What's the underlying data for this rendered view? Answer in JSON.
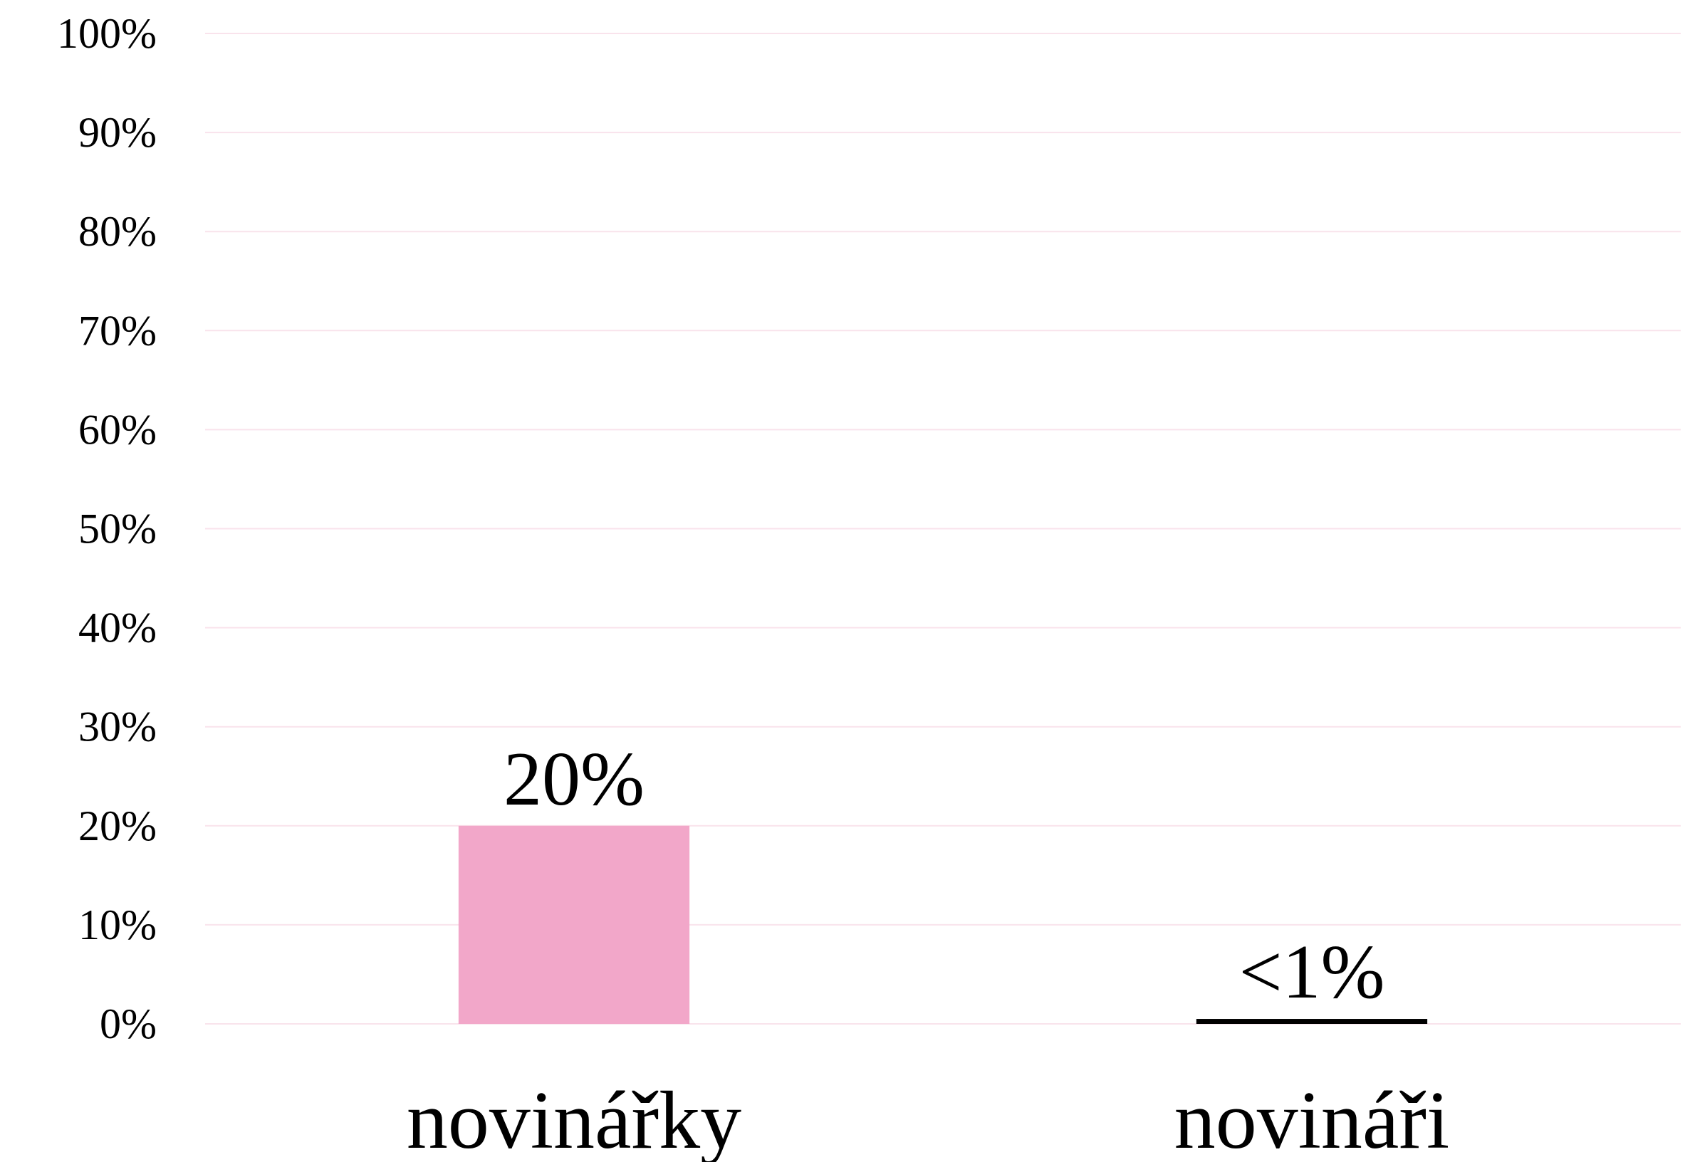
{
  "chart_data": {
    "type": "bar",
    "categories": [
      "novinářky",
      "novináři"
    ],
    "values": [
      20,
      0.5
    ],
    "value_labels": [
      "20%",
      "<1%"
    ],
    "colors": [
      "#f2a7c9",
      "#000000"
    ],
    "ylim": [
      0,
      100
    ],
    "yticks": [
      {
        "value": 0,
        "label": "0%"
      },
      {
        "value": 10,
        "label": "10%"
      },
      {
        "value": 20,
        "label": "20%"
      },
      {
        "value": 30,
        "label": "30%"
      },
      {
        "value": 40,
        "label": "40%"
      },
      {
        "value": 50,
        "label": "50%"
      },
      {
        "value": 60,
        "label": "60%"
      },
      {
        "value": 70,
        "label": "70%"
      },
      {
        "value": 80,
        "label": "80%"
      },
      {
        "value": 90,
        "label": "90%"
      },
      {
        "value": 100,
        "label": "100%"
      }
    ],
    "grid": true
  }
}
